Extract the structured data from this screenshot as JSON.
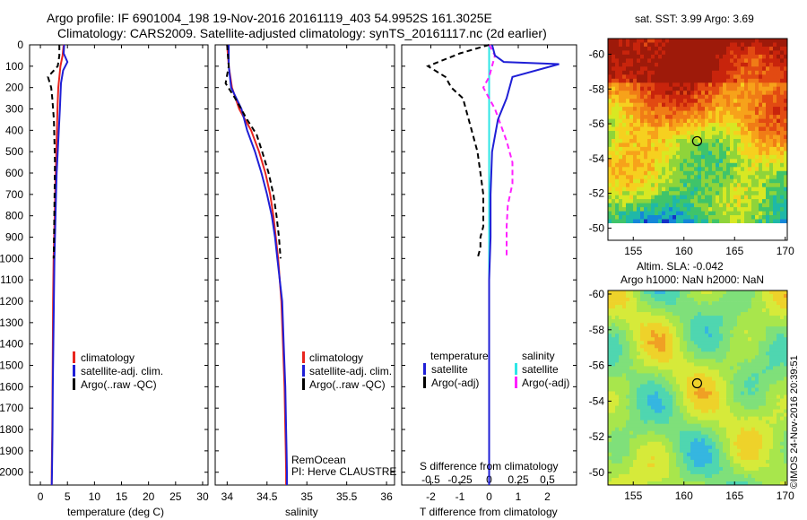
{
  "header": {
    "title_line1": "Argo profile: IF 6901004_198 19-Nov-2016 20161119_403 54.9952S 161.3025E",
    "title_line2": "Climatology: CARS2009. Satellite-adjusted climatology: synTS_20161117.nc (2d earlier)"
  },
  "colors": {
    "climatology": "#e8251f",
    "satellite": "#1f1fd6",
    "argo": "#000000",
    "satellite_salinity": "#2ee6e6",
    "argo_salinity": "#ff1fff"
  },
  "depth_ticks": [
    "0",
    "100",
    "200",
    "300",
    "400",
    "500",
    "600",
    "700",
    "800",
    "900",
    "1000",
    "1100",
    "1200",
    "1300",
    "1400",
    "1500",
    "1600",
    "1700",
    "1800",
    "1900",
    "2000"
  ],
  "temperature_panel": {
    "xlabel": "temperature (deg C)",
    "xticks": [
      "0",
      "5",
      "10",
      "15",
      "20",
      "25",
      "30"
    ],
    "legend": [
      "climatology",
      "satellite-adj. clim.",
      "Argo(..raw -QC)"
    ]
  },
  "salinity_panel": {
    "xlabel": "salinity",
    "xticks": [
      "34",
      "34.5",
      "35",
      "35.5",
      "36"
    ],
    "legend": [
      "climatology",
      "satellite-adj. clim.",
      "Argo(..raw -QC)"
    ],
    "credit_line1": "RemOcean",
    "credit_line2": "PI: Herve CLAUSTRE"
  },
  "difference_panel": {
    "xlabel_top": "S difference from climatology",
    "xlabel_bottom": "T difference from climatology",
    "top_ticks": [
      "-0.5",
      "-0.25",
      "0",
      "0.25",
      "0.5"
    ],
    "bottom_ticks": [
      "-2",
      "-1",
      "0",
      "1",
      "2"
    ],
    "legend_temperature_title": "temperature",
    "legend_salinity_title": "salinity",
    "legend_temp_items": [
      "satellite",
      "Argo(-adj)"
    ],
    "legend_sal_items": [
      "satellite",
      "Argo(-adj)"
    ]
  },
  "map_sst": {
    "title": "sat. SST: 3.99 Argo: 3.69",
    "xticks": [
      "155",
      "160",
      "165",
      "170"
    ],
    "yticks": [
      "-50",
      "-52",
      "-54",
      "-56",
      "-58",
      "-60"
    ]
  },
  "map_sla": {
    "title_line1": "Altim. SLA: -0.042",
    "title_line2": "Argo h1000: NaN h2000: NaN",
    "xticks": [
      "155",
      "160",
      "165",
      "170"
    ],
    "yticks": [
      "-50",
      "-52",
      "-54",
      "-56",
      "-58",
      "-60"
    ]
  },
  "footer_stamp": "©IMOS 24-Nov-2016 20:39:51",
  "chart_data": [
    {
      "type": "line",
      "xlabel": "temperature (deg C)",
      "xlim": [
        -2,
        31
      ],
      "ylim": [
        2060,
        0
      ],
      "series": [
        {
          "name": "climatology",
          "x": [
            4.3,
            4.1,
            3.7,
            3.5,
            3.3,
            3.15,
            3.05,
            2.95,
            2.85,
            2.75,
            2.65,
            2.55,
            2.45,
            2.35,
            2.3,
            2.25,
            2.2,
            2.15,
            2.1,
            2.1
          ],
          "depth": [
            0,
            50,
            100,
            150,
            200,
            300,
            400,
            500,
            600,
            700,
            800,
            900,
            1000,
            1200,
            1400,
            1600,
            1800,
            1900,
            2000,
            2060
          ]
        },
        {
          "name": "satellite-adj. clim.",
          "x": [
            4.4,
            4.3,
            5.0,
            4.2,
            3.8,
            3.6,
            3.4,
            3.2,
            3.0,
            2.9,
            2.8,
            2.7,
            2.6,
            2.5,
            2.4,
            2.3,
            2.25,
            2.2,
            2.15,
            2.1
          ],
          "depth": [
            0,
            40,
            80,
            120,
            180,
            300,
            400,
            500,
            600,
            700,
            800,
            900,
            1000,
            1200,
            1400,
            1600,
            1800,
            1900,
            2000,
            2060
          ]
        },
        {
          "name": "Argo(..raw -QC)",
          "x": [
            3.5,
            3.5,
            3.2,
            1.4,
            2.0,
            2.2,
            2.5,
            2.6,
            2.7,
            2.65,
            2.6,
            2.55,
            2.5,
            2.45
          ],
          "depth": [
            0,
            50,
            100,
            150,
            200,
            250,
            350,
            450,
            550,
            650,
            750,
            850,
            950,
            1000
          ]
        }
      ]
    },
    {
      "type": "line",
      "xlabel": "salinity",
      "xlim": [
        33.85,
        36.1
      ],
      "ylim": [
        2060,
        0
      ],
      "series": [
        {
          "name": "climatology",
          "x": [
            34.0,
            34.02,
            34.06,
            34.15,
            34.3,
            34.4,
            34.48,
            34.54,
            34.58,
            34.61,
            34.64,
            34.66,
            34.68,
            34.7,
            34.72,
            34.73,
            34.735,
            34.74,
            34.74
          ],
          "depth": [
            0,
            100,
            200,
            300,
            400,
            500,
            600,
            700,
            800,
            900,
            1000,
            1100,
            1200,
            1400,
            1600,
            1800,
            1900,
            2000,
            2060
          ]
        },
        {
          "name": "satellite-adj. clim.",
          "x": [
            34.02,
            34.02,
            34.05,
            34.18,
            34.25,
            34.35,
            34.43,
            34.5,
            34.56,
            34.6,
            34.63,
            34.66,
            34.69,
            34.71,
            34.73,
            34.74,
            34.745,
            34.75,
            34.75
          ],
          "depth": [
            0,
            100,
            200,
            300,
            400,
            500,
            600,
            700,
            800,
            900,
            1000,
            1100,
            1200,
            1400,
            1600,
            1800,
            1900,
            2000,
            2060
          ]
        },
        {
          "name": "Argo(..raw -QC)",
          "x": [
            34.0,
            34.02,
            33.98,
            34.1,
            34.25,
            34.37,
            34.44,
            34.52,
            34.58,
            34.62,
            34.65,
            34.66,
            34.67
          ],
          "depth": [
            0,
            100,
            180,
            250,
            350,
            420,
            500,
            600,
            700,
            800,
            900,
            950,
            1000
          ]
        }
      ]
    },
    {
      "type": "line",
      "xlabel": "T difference from climatology",
      "xlim": [
        -3,
        3
      ],
      "ylim": [
        2060,
        0
      ],
      "series": [
        {
          "name": "temperature satellite",
          "x": [
            0.1,
            0.2,
            0.5,
            2.4,
            0.8,
            0.6,
            0.3,
            0.1,
            0.05,
            0.05,
            0.0,
            0.0,
            0.0,
            0.0,
            0.0,
            0.0,
            0.0
          ],
          "depth": [
            0,
            50,
            80,
            90,
            150,
            250,
            350,
            500,
            700,
            900,
            1100,
            1300,
            1500,
            1700,
            1900,
            2000,
            2060
          ]
        },
        {
          "name": "temperature Argo(-adj)",
          "x": [
            0.0,
            -1.0,
            -2.1,
            -1.5,
            -1.3,
            -0.9,
            -0.8,
            -0.6,
            -0.4,
            -0.3,
            -0.2,
            -0.2,
            -0.2,
            -0.3,
            -0.3,
            -0.4
          ],
          "depth": [
            0,
            40,
            100,
            150,
            200,
            250,
            300,
            400,
            500,
            600,
            700,
            800,
            850,
            900,
            950,
            1000
          ]
        }
      ]
    },
    {
      "type": "line",
      "xlabel": "S difference from climatology",
      "xlim": [
        -0.75,
        0.75
      ],
      "ylim": [
        2060,
        0
      ],
      "series": [
        {
          "name": "salinity satellite",
          "x": [
            0.0,
            0.0,
            0.0,
            0.0,
            0.0,
            0.0,
            0.0,
            0.0,
            0.0,
            0.0,
            0.0,
            0.0,
            0.0
          ],
          "depth": [
            0,
            100,
            200,
            400,
            600,
            800,
            1000,
            1200,
            1400,
            1600,
            1800,
            2000,
            2060
          ]
        },
        {
          "name": "salinity Argo(-adj)",
          "x": [
            0.0,
            0.05,
            0.0,
            -0.05,
            0.05,
            0.15,
            0.2,
            0.2,
            0.16,
            0.15,
            0.15,
            0.15
          ],
          "depth": [
            0,
            50,
            150,
            200,
            300,
            450,
            550,
            650,
            750,
            850,
            950,
            1000
          ]
        }
      ]
    }
  ]
}
